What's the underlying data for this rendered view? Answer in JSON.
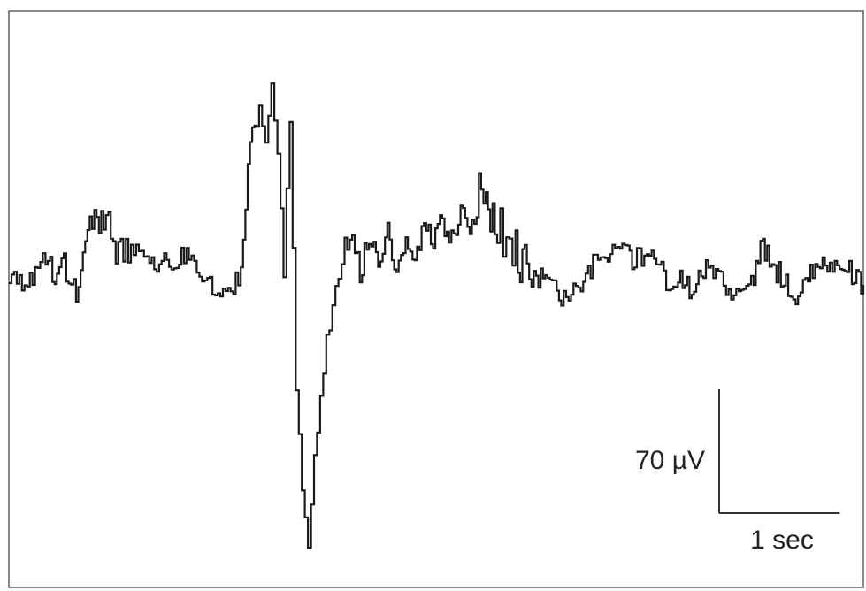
{
  "chart_data": {
    "type": "line",
    "title": "",
    "xlabel": "",
    "ylabel": "",
    "legend": "none",
    "grid": false,
    "x_unit": "sec",
    "y_unit": "µV",
    "xlim": [
      0,
      5.6
    ],
    "ylim": [
      -180,
      160
    ],
    "series": [
      {
        "color": "#1a1a1a",
        "x": [
          0.0,
          0.12,
          0.24,
          0.3,
          0.36,
          0.44,
          0.5,
          0.56,
          0.62,
          0.7,
          0.8,
          0.92,
          1.05,
          1.18,
          1.3,
          1.42,
          1.52,
          1.58,
          1.64,
          1.68,
          1.72,
          1.76,
          1.8,
          1.84,
          1.88,
          1.92,
          1.96,
          2.0,
          2.04,
          2.08,
          2.12,
          2.16,
          2.2,
          2.25,
          2.3,
          2.36,
          2.42,
          2.48,
          2.54,
          2.6,
          2.66,
          2.72,
          2.78,
          2.84,
          2.9,
          2.96,
          3.02,
          3.08,
          3.14,
          3.2,
          3.24,
          3.28,
          3.32,
          3.38,
          3.44,
          3.5,
          3.56,
          3.62,
          3.7,
          3.78,
          3.86,
          3.94,
          4.02,
          4.1,
          4.18,
          4.26,
          4.34,
          4.4,
          4.46,
          4.52,
          4.6,
          4.7,
          4.8,
          4.88,
          4.94,
          5.0,
          5.06,
          5.14,
          5.22,
          5.3,
          5.38,
          5.46,
          5.54,
          5.6
        ],
        "y": [
          12,
          4,
          20,
          6,
          16,
          0,
          28,
          44,
          34,
          26,
          22,
          16,
          18,
          20,
          10,
          -6,
          14,
          88,
          102,
          82,
          122,
          74,
          12,
          96,
          -50,
          -112,
          -140,
          -98,
          -62,
          -30,
          -4,
          14,
          24,
          30,
          10,
          32,
          16,
          34,
          14,
          30,
          18,
          38,
          26,
          40,
          30,
          44,
          40,
          62,
          48,
          36,
          28,
          24,
          20,
          12,
          6,
          8,
          4,
          -2,
          0,
          12,
          16,
          20,
          22,
          18,
          24,
          12,
          4,
          8,
          0,
          12,
          14,
          2,
          -2,
          10,
          26,
          16,
          8,
          -2,
          4,
          18,
          10,
          18,
          8,
          4
        ]
      }
    ],
    "scale_bar": {
      "vertical_label": "70 µV",
      "vertical_value": 70,
      "vertical_unit": "µV",
      "horizontal_label": "1 sec",
      "horizontal_value": 1,
      "horizontal_unit": "sec"
    }
  }
}
